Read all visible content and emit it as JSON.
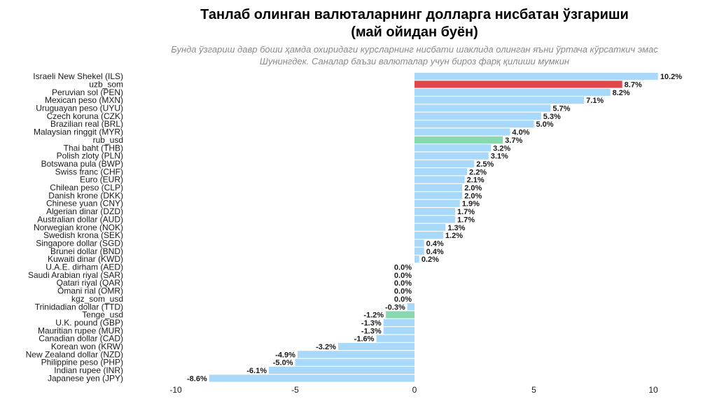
{
  "chart_data": {
    "type": "bar",
    "orientation": "horizontal",
    "title_line1": "Танлаб олинган валюталарнинг  долларга нисбатан ўзгариши",
    "title_line2": "(май ойидан буён)",
    "subtitle_line1": "Бунда ўзгариш давр боши ҳамда охиридаги  курсларнинг нисбати шаклида олинган яъни ўртача кўрсаткич эмас",
    "subtitle_line2": "Шунингдек. Саналар  баъзи валюталар учун бироз фарқ қилиши мумкин",
    "xlabel": "",
    "ylabel": "",
    "xlim": [
      -10.5,
      10.5
    ],
    "xticks": [
      -10,
      -5,
      0,
      5,
      10
    ],
    "xtick_labels": [
      "-10",
      "-5",
      "0",
      "5",
      "10"
    ],
    "grid": false,
    "colors": {
      "default": "#a8d8fa",
      "uzb_som": "#e0474a",
      "rub_usd": "#88d8b0",
      "Tenge_usd": "#88d8b0"
    },
    "categories": [
      "Israeli New Shekel (ILS)",
      "uzb_som",
      "Peruvian sol (PEN)",
      "Mexican peso (MXN)",
      "Uruguayan peso (UYU)",
      "Czech koruna (CZK)",
      "Brazilian real (BRL)",
      "Malaysian ringgit (MYR)",
      "rub_usd",
      "Thai baht (THB)",
      "Polish zloty (PLN)",
      "Botswana pula (BWP)",
      "Swiss franc (CHF)",
      "Euro (EUR)",
      "Chilean peso (CLP)",
      "Danish krone (DKK)",
      "Chinese yuan (CNY)",
      "Algerian dinar (DZD)",
      "Australian dollar (AUD)",
      "Norwegian krone (NOK)",
      "Swedish krona (SEK)",
      "Singapore dollar (SGD)",
      "Brunei dollar (BND)",
      "Kuwaiti dinar (KWD)",
      "U.A.E. dirham (AED)",
      "Saudi Arabian riyal (SAR)",
      "Qatari riyal (QAR)",
      "Omani rial (OMR)",
      "kgz_som_usd",
      "Trinidadian dollar (TTD)",
      "Tenge_usd",
      "U.K. pound (GBP)",
      "Mauritian rupee (MUR)",
      "Canadian dollar (CAD)",
      "Korean won (KRW)",
      "New Zealand dollar (NZD)",
      "Philippine peso (PHP)",
      "Indian rupee (INR)",
      "Japanese yen (JPY)"
    ],
    "values": [
      10.2,
      8.7,
      8.2,
      7.1,
      5.7,
      5.3,
      5.0,
      4.0,
      3.7,
      3.2,
      3.1,
      2.5,
      2.2,
      2.1,
      2.0,
      2.0,
      1.9,
      1.7,
      1.7,
      1.3,
      1.2,
      0.4,
      0.4,
      0.2,
      0.0,
      0.0,
      0.0,
      0.0,
      0.0,
      -0.3,
      -1.2,
      -1.3,
      -1.3,
      -1.6,
      -3.2,
      -4.9,
      -5.0,
      -6.1,
      -8.6
    ],
    "value_labels": [
      "10.2%",
      "8.7%",
      "8.2%",
      "7.1%",
      "5.7%",
      "5.3%",
      "5.0%",
      "4.0%",
      "3.7%",
      "3.2%",
      "3.1%",
      "2.5%",
      "2.2%",
      "2.1%",
      "2.0%",
      "2.0%",
      "1.9%",
      "1.7%",
      "1.7%",
      "1.3%",
      "1.2%",
      "0.4%",
      "0.4%",
      "0.2%",
      "0.0%",
      "0.0%",
      "0.0%",
      "0.0%",
      "0.0%",
      "-0.3%",
      "-1.2%",
      "-1.3%",
      "-1.3%",
      "-1.6%",
      "-3.2%",
      "-4.9%",
      "-5.0%",
      "-6.1%",
      "-8.6%"
    ]
  }
}
